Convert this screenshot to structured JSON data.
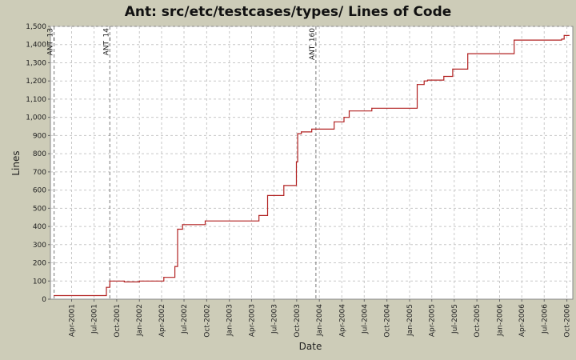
{
  "chart_data": {
    "type": "line",
    "title": "Ant: src/etc/testcases/types/ Lines of Code",
    "xlabel": "Date",
    "ylabel": "Lines",
    "ylim": [
      0,
      1500
    ],
    "xlim": [
      "2001-01-05",
      "2006-10-25"
    ],
    "grid": true,
    "legend": "none",
    "step": true,
    "colors": {
      "background": "#cdccb8",
      "plot_background": "#ffffff",
      "line": "#b22222",
      "grid": "#c8c8c8",
      "marker": "#777777"
    },
    "yticks": [
      {
        "value": 0,
        "label": "0"
      },
      {
        "value": 100,
        "label": "100"
      },
      {
        "value": 200,
        "label": "200"
      },
      {
        "value": 300,
        "label": "300"
      },
      {
        "value": 400,
        "label": "400"
      },
      {
        "value": 500,
        "label": "500"
      },
      {
        "value": 600,
        "label": "600"
      },
      {
        "value": 700,
        "label": "700"
      },
      {
        "value": 800,
        "label": "800"
      },
      {
        "value": 900,
        "label": "900"
      },
      {
        "value": 1000,
        "label": "1,000"
      },
      {
        "value": 1100,
        "label": "1,100"
      },
      {
        "value": 1200,
        "label": "1,200"
      },
      {
        "value": 1300,
        "label": "1,300"
      },
      {
        "value": 1400,
        "label": "1,400"
      },
      {
        "value": 1500,
        "label": "1,500"
      }
    ],
    "xticks": [
      {
        "date": "2001-04-01",
        "label": "Apr-2001"
      },
      {
        "date": "2001-07-01",
        "label": "Jul-2001"
      },
      {
        "date": "2001-10-01",
        "label": "Oct-2001"
      },
      {
        "date": "2002-01-01",
        "label": "Jan-2002"
      },
      {
        "date": "2002-04-01",
        "label": "Apr-2002"
      },
      {
        "date": "2002-07-01",
        "label": "Jul-2002"
      },
      {
        "date": "2002-10-01",
        "label": "Oct-2002"
      },
      {
        "date": "2003-01-01",
        "label": "Jan-2003"
      },
      {
        "date": "2003-04-01",
        "label": "Apr-2003"
      },
      {
        "date": "2003-07-01",
        "label": "Jul-2003"
      },
      {
        "date": "2003-10-01",
        "label": "Oct-2003"
      },
      {
        "date": "2004-01-01",
        "label": "Jan-2004"
      },
      {
        "date": "2004-04-01",
        "label": "Apr-2004"
      },
      {
        "date": "2004-07-01",
        "label": "Jul-2004"
      },
      {
        "date": "2004-10-01",
        "label": "Oct-2004"
      },
      {
        "date": "2005-01-01",
        "label": "Jan-2005"
      },
      {
        "date": "2005-04-01",
        "label": "Apr-2005"
      },
      {
        "date": "2005-07-01",
        "label": "Jul-2005"
      },
      {
        "date": "2005-10-01",
        "label": "Oct-2005"
      },
      {
        "date": "2006-01-01",
        "label": "Jan-2006"
      },
      {
        "date": "2006-04-01",
        "label": "Apr-2006"
      },
      {
        "date": "2006-07-01",
        "label": "Jul-2006"
      },
      {
        "date": "2006-10-01",
        "label": "Oct-2006"
      }
    ],
    "markers": [
      {
        "date": "2001-01-20",
        "label": "ANT_13"
      },
      {
        "date": "2001-09-03",
        "label": "ANT_14"
      },
      {
        "date": "2003-12-18",
        "label": "ANT_160"
      }
    ],
    "points": [
      {
        "x": "2001-01-20",
        "y": 20
      },
      {
        "x": "2001-08-15",
        "y": 20
      },
      {
        "x": "2001-08-20",
        "y": 65
      },
      {
        "x": "2001-09-03",
        "y": 100
      },
      {
        "x": "2001-11-01",
        "y": 95
      },
      {
        "x": "2002-01-01",
        "y": 100
      },
      {
        "x": "2002-04-10",
        "y": 120
      },
      {
        "x": "2002-05-25",
        "y": 180
      },
      {
        "x": "2002-06-05",
        "y": 385
      },
      {
        "x": "2002-06-25",
        "y": 410
      },
      {
        "x": "2002-09-25",
        "y": 430
      },
      {
        "x": "2003-05-01",
        "y": 460
      },
      {
        "x": "2003-06-05",
        "y": 570
      },
      {
        "x": "2003-08-10",
        "y": 625
      },
      {
        "x": "2003-09-30",
        "y": 755
      },
      {
        "x": "2003-10-05",
        "y": 910
      },
      {
        "x": "2003-10-20",
        "y": 920
      },
      {
        "x": "2003-12-01",
        "y": 935
      },
      {
        "x": "2004-03-01",
        "y": 975
      },
      {
        "x": "2004-04-10",
        "y": 1000
      },
      {
        "x": "2004-05-01",
        "y": 1035
      },
      {
        "x": "2004-08-01",
        "y": 1050
      },
      {
        "x": "2005-02-01",
        "y": 1180
      },
      {
        "x": "2005-03-01",
        "y": 1200
      },
      {
        "x": "2005-03-15",
        "y": 1205
      },
      {
        "x": "2005-05-20",
        "y": 1225
      },
      {
        "x": "2005-06-25",
        "y": 1265
      },
      {
        "x": "2005-08-25",
        "y": 1350
      },
      {
        "x": "2006-03-01",
        "y": 1425
      },
      {
        "x": "2006-09-10",
        "y": 1430
      },
      {
        "x": "2006-09-20",
        "y": 1450
      },
      {
        "x": "2006-10-10",
        "y": 1450
      }
    ]
  }
}
